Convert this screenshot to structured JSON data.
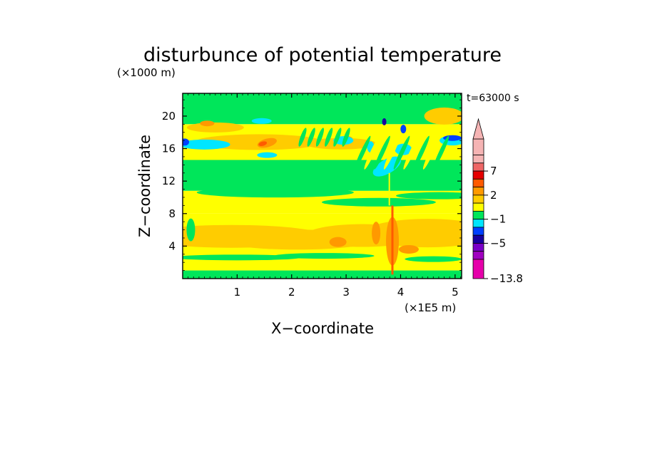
{
  "chart_data": {
    "type": "heatmap",
    "title": "disturbunce of potential temperature",
    "xlabel": "X−coordinate",
    "ylabel": "Z−coordinate",
    "x_unit": "(×1E5 m)",
    "y_unit": "(×1000 m)",
    "time_label": "t=63000 s",
    "xlim": [
      0,
      5.12
    ],
    "ylim": [
      0,
      22.8
    ],
    "x_ticks": [
      1,
      2,
      3,
      4,
      5
    ],
    "y_ticks": [
      4,
      8,
      12,
      16,
      20
    ],
    "colorbar": {
      "labels": [
        "7",
        "2",
        "−1",
        "−5",
        "−13.8"
      ],
      "min": -13.8,
      "extend_max": true
    },
    "field_description_values": {
      "bands": [
        {
          "z_from": 0,
          "z_to": 1,
          "value_level": "mixed"
        },
        {
          "z_from": 1,
          "z_to": 8,
          "value_level": "0..2"
        },
        {
          "z_from": 8,
          "z_to": 11,
          "value_level": "0..1"
        },
        {
          "z_from": 11,
          "z_to": 15,
          "value_level": "-1..0"
        },
        {
          "z_from": 15,
          "z_to": 19,
          "value_level": "0..3"
        },
        {
          "z_from": 19,
          "z_to": 22.8,
          "value_level": "-1..0"
        }
      ]
    },
    "colors": {
      "magenta": "#e600aa",
      "purple": "#a000c0",
      "violet": "#7a00c8",
      "navy": "#1800a0",
      "blue": "#0040ff",
      "cyan": "#00e6ff",
      "green": "#00e65a",
      "yellow": "#ffff00",
      "lightorange": "#ffcc00",
      "orange": "#ff9900",
      "darkorange": "#ff5a00",
      "red": "#e60000",
      "salmon": "#ee6666",
      "pink": "#f5b4b4"
    }
  }
}
